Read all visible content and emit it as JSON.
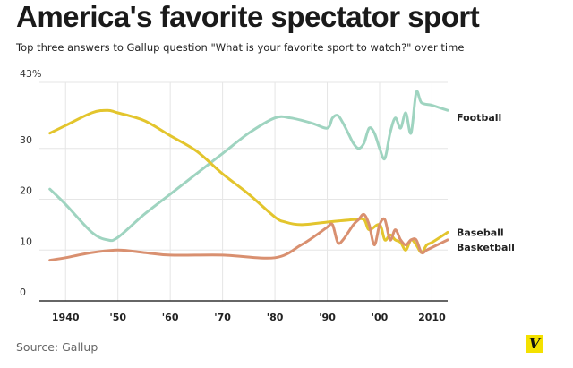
{
  "title": "America's favorite spectator sport",
  "subtitle": "Top three answers to Gallup question \"What is your favorite sport to watch?\" over time",
  "source": "Source: Gallup",
  "logo_letter": "V",
  "colors": {
    "football": "#9fd4c0",
    "baseball": "#e3c52d",
    "basketball": "#d99070",
    "logo": "#f4e100"
  },
  "chart_data": {
    "type": "line",
    "title": "America's favorite spectator sport",
    "xlim": [
      1935,
      2013
    ],
    "ylim": [
      0,
      43
    ],
    "y_ticks": [
      {
        "value": 0,
        "label": "0"
      },
      {
        "value": 10,
        "label": "10"
      },
      {
        "value": 20,
        "label": "20"
      },
      {
        "value": 30,
        "label": "30"
      },
      {
        "value": 43,
        "label": "43%"
      }
    ],
    "x_ticks": [
      {
        "value": 1940,
        "label": "1940"
      },
      {
        "value": 1950,
        "label": "'50"
      },
      {
        "value": 1960,
        "label": "'60"
      },
      {
        "value": 1970,
        "label": "'70"
      },
      {
        "value": 1980,
        "label": "'80"
      },
      {
        "value": 1990,
        "label": "'90"
      },
      {
        "value": 2000,
        "label": "'00"
      },
      {
        "value": 2010,
        "label": "2010"
      }
    ],
    "grid": true,
    "series": [
      {
        "name": "Football",
        "color": "#9fd4c0",
        "points": [
          [
            1937,
            22
          ],
          [
            1940,
            19
          ],
          [
            1945,
            13.5
          ],
          [
            1948,
            12
          ],
          [
            1950,
            12.5
          ],
          [
            1955,
            17
          ],
          [
            1960,
            21
          ],
          [
            1965,
            25
          ],
          [
            1970,
            29
          ],
          [
            1975,
            33
          ],
          [
            1980,
            36
          ],
          [
            1983,
            36
          ],
          [
            1987,
            35
          ],
          [
            1990,
            34
          ],
          [
            1991,
            36
          ],
          [
            1992,
            36.5
          ],
          [
            1993,
            35
          ],
          [
            1994,
            33
          ],
          [
            1995,
            31
          ],
          [
            1996,
            30
          ],
          [
            1997,
            31
          ],
          [
            1998,
            34
          ],
          [
            1999,
            33
          ],
          [
            2000,
            30
          ],
          [
            2001,
            28
          ],
          [
            2002,
            33
          ],
          [
            2003,
            36
          ],
          [
            2004,
            34
          ],
          [
            2005,
            37
          ],
          [
            2006,
            33
          ],
          [
            2007,
            41
          ],
          [
            2008,
            39
          ],
          [
            2010,
            38.5
          ],
          [
            2013,
            37.5
          ]
        ]
      },
      {
        "name": "Baseball",
        "color": "#e3c52d",
        "points": [
          [
            1937,
            33
          ],
          [
            1940,
            34.5
          ],
          [
            1945,
            37
          ],
          [
            1948,
            37.5
          ],
          [
            1950,
            37
          ],
          [
            1955,
            35.5
          ],
          [
            1960,
            32.5
          ],
          [
            1965,
            29.5
          ],
          [
            1970,
            25
          ],
          [
            1975,
            21
          ],
          [
            1980,
            16.5
          ],
          [
            1982,
            15.5
          ],
          [
            1985,
            15
          ],
          [
            1990,
            15.5
          ],
          [
            1995,
            16
          ],
          [
            1997,
            16
          ],
          [
            1998,
            14
          ],
          [
            2000,
            15
          ],
          [
            2001,
            12
          ],
          [
            2002,
            13
          ],
          [
            2003,
            12
          ],
          [
            2004,
            11.5
          ],
          [
            2005,
            10
          ],
          [
            2006,
            12
          ],
          [
            2007,
            11
          ],
          [
            2008,
            9.5
          ],
          [
            2009,
            11
          ],
          [
            2010,
            11.5
          ],
          [
            2013,
            13.5
          ]
        ]
      },
      {
        "name": "Basketball",
        "color": "#d99070",
        "points": [
          [
            1937,
            8
          ],
          [
            1940,
            8.5
          ],
          [
            1945,
            9.5
          ],
          [
            1950,
            10
          ],
          [
            1955,
            9.5
          ],
          [
            1960,
            9
          ],
          [
            1970,
            9
          ],
          [
            1980,
            8.5
          ],
          [
            1985,
            11
          ],
          [
            1988,
            13
          ],
          [
            1990,
            14.5
          ],
          [
            1991,
            15
          ],
          [
            1992,
            11.5
          ],
          [
            1993,
            12
          ],
          [
            1995,
            15
          ],
          [
            1996,
            16
          ],
          [
            1997,
            17
          ],
          [
            1998,
            15
          ],
          [
            1999,
            11
          ],
          [
            2000,
            15
          ],
          [
            2001,
            16
          ],
          [
            2002,
            12
          ],
          [
            2003,
            14
          ],
          [
            2004,
            12
          ],
          [
            2005,
            11
          ],
          [
            2006,
            12
          ],
          [
            2007,
            12
          ],
          [
            2008,
            9.5
          ],
          [
            2009,
            10
          ],
          [
            2010,
            10.5
          ],
          [
            2013,
            12
          ]
        ]
      }
    ]
  }
}
